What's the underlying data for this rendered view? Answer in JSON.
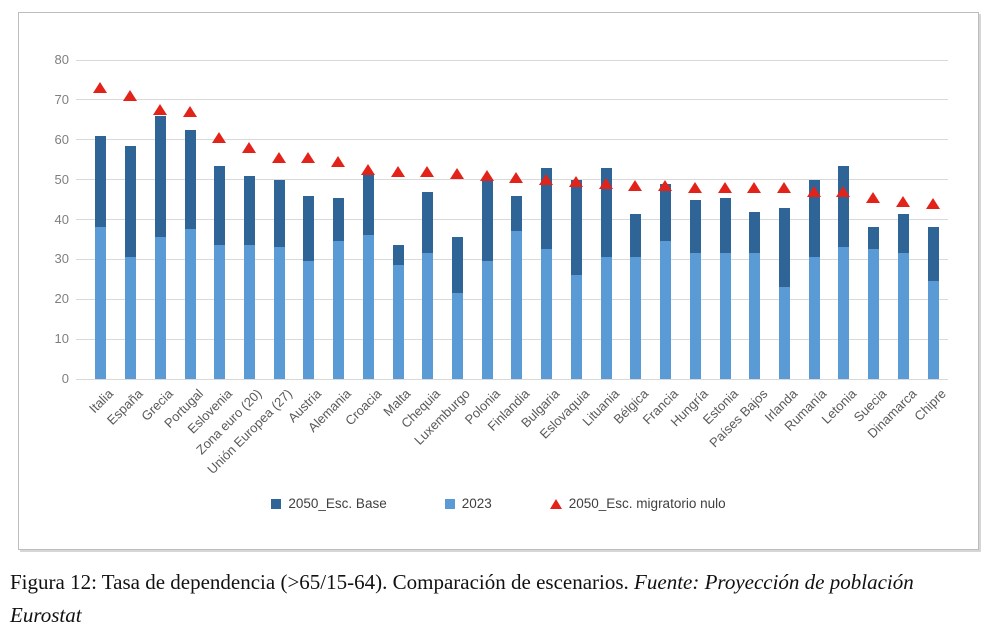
{
  "figure": {
    "caption_normal": "Figura 12: Tasa de dependencia (>65/15-64). Comparación de escenarios. ",
    "caption_italic": "Fuente: Proyección de población Eurostat"
  },
  "legend": {
    "items": [
      {
        "label": "2050_Esc. Base"
      },
      {
        "label": "2023"
      },
      {
        "label": "2050_Esc. migratorio nulo"
      }
    ]
  },
  "colors": {
    "bar_base_2050": "#2e6496",
    "bar_2023": "#5b9bd5",
    "marker_null": "#e2231a",
    "gridline": "#d9d9d9",
    "axis_text": "#7f7f7f",
    "category_text": "#595959",
    "chart_border": "#bdbdbd"
  },
  "chart_data": {
    "type": "bar",
    "subtype": "overlapped-bars-with-scatter-markers",
    "title": "",
    "xlabel": "",
    "ylabel": "",
    "ylim": [
      0,
      80
    ],
    "ytick_interval": 10,
    "grid": true,
    "legend_position": "bottom",
    "categories": [
      "Italia",
      "España",
      "Grecia",
      "Portugal",
      "Eslovenia",
      "Zona euro (20)",
      "Unión Europea (27)",
      "Austria",
      "Alemania",
      "Croacia",
      "Malta",
      "Chequia",
      "Luxemburgo",
      "Polonia",
      "Finlandia",
      "Bulgaria",
      "Eslovaquia",
      "Lituania",
      "Bélgica",
      "Francia",
      "Hungría",
      "Estonia",
      "Países Bajos",
      "Irlanda",
      "Rumanía",
      "Letonia",
      "Suecia",
      "Dinamarca",
      "Chipre"
    ],
    "series": [
      {
        "name": "2050_Esc. Base",
        "type": "bar",
        "color": "#2e6496",
        "values": [
          61,
          58.5,
          66,
          62.5,
          53.5,
          51,
          50,
          46,
          45.5,
          51.5,
          33.5,
          47,
          35.5,
          50,
          46,
          53,
          50,
          53,
          41.5,
          49,
          45,
          45.5,
          42,
          43,
          50,
          53.5,
          38,
          41.5,
          38
        ]
      },
      {
        "name": "2023",
        "type": "bar",
        "color": "#5b9bd5",
        "values": [
          38,
          30.5,
          35.5,
          37.5,
          33.5,
          33.5,
          33,
          29.5,
          34.5,
          36,
          28.5,
          31.5,
          21.5,
          29.5,
          37,
          32.5,
          26,
          30.5,
          30.5,
          34.5,
          31.5,
          31.5,
          31.5,
          23,
          30.5,
          33,
          32.5,
          31.5,
          24.5
        ]
      },
      {
        "name": "2050_Esc. migratorio nulo",
        "type": "scatter",
        "marker": "triangle",
        "color": "#e2231a",
        "values": [
          73,
          71,
          67.5,
          67,
          60.5,
          58,
          55.5,
          55.5,
          54.5,
          52.5,
          52,
          52,
          51.5,
          51,
          50.5,
          50,
          49.5,
          49,
          48.5,
          48.5,
          48,
          48,
          48,
          48,
          47,
          47,
          45.5,
          44.5,
          44
        ]
      }
    ]
  }
}
